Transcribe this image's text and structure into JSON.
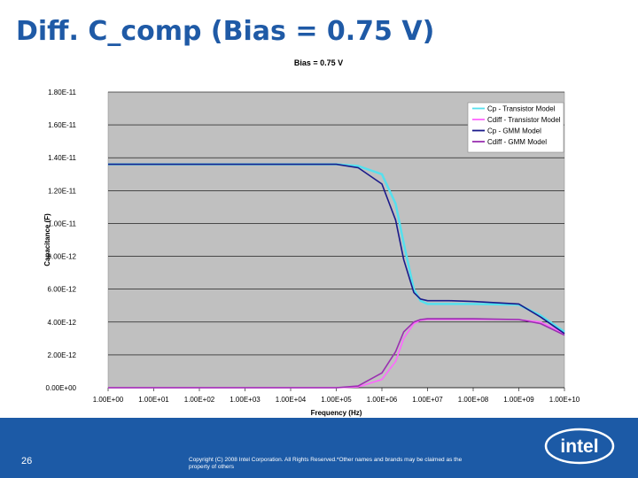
{
  "slide": {
    "title": "Diff. C_comp (Bias = 0.75 V)",
    "page_number": "26",
    "copyright": "Copyright (C) 2008 Intel Corporation. All Rights Reserved.*Other names and brands may be claimed as the property of others",
    "logo_text": "intel",
    "band_color": "#1c5aa6",
    "title_color": "#1f5aa6"
  },
  "chart_data": {
    "type": "line",
    "title": "Bias = 0.75 V",
    "xlabel": "Frequency (Hz)",
    "ylabel": "Capacitance (F)",
    "x_scale": "log",
    "xlim": [
      1,
      10000000000
    ],
    "ylim": [
      0,
      1.8e-11
    ],
    "x_tick_labels": [
      "1.00E+00",
      "1.00E+01",
      "1.00E+02",
      "1.00E+03",
      "1.00E+04",
      "1.00E+05",
      "1.00E+06",
      "1.00E+07",
      "1.00E+08",
      "1.00E+09",
      "1.00E+10"
    ],
    "y_tick_labels": [
      "0.00E+00",
      "2.00E-12",
      "4.00E-12",
      "6.00E-12",
      "8.00E-12",
      "1.00E-11",
      "1.20E-11",
      "1.40E-11",
      "1.60E-11",
      "1.80E-11"
    ],
    "grid": true,
    "legend_position": "top-right",
    "plot_background": "#c0c0c0",
    "series": [
      {
        "name": "Cp - Transistor Model",
        "color": "#55e0ee",
        "x": [
          1,
          10,
          100,
          1000,
          10000,
          100000,
          300000,
          1000000,
          2000000,
          3000000,
          5000000,
          7000000,
          10000000,
          30000000,
          100000000,
          1000000000,
          3000000000,
          10000000000
        ],
        "y": [
          1.36e-11,
          1.36e-11,
          1.36e-11,
          1.36e-11,
          1.36e-11,
          1.36e-11,
          1.35e-11,
          1.3e-11,
          1.12e-11,
          8.8e-12,
          6e-12,
          5.3e-12,
          5.1e-12,
          5.1e-12,
          5.1e-12,
          5.05e-12,
          4.4e-12,
          3.4e-12
        ]
      },
      {
        "name": "Cdiff - Transistor Model",
        "color": "#ff66ff",
        "x": [
          1,
          10,
          100,
          1000,
          10000,
          100000,
          300000,
          1000000,
          2000000,
          3000000,
          5000000,
          7000000,
          10000000,
          30000000,
          100000000,
          1000000000,
          3000000000,
          10000000000
        ],
        "y": [
          0,
          0,
          0,
          0,
          0,
          0,
          5e-14,
          5e-13,
          1.6e-12,
          3e-12,
          3.9e-12,
          4.1e-12,
          4.15e-12,
          4.15e-12,
          4.15e-12,
          4.15e-12,
          4e-12,
          3.3e-12
        ]
      },
      {
        "name": "Cp - GMM Model",
        "color": "#1a1a8a",
        "x": [
          1,
          10,
          100,
          1000,
          10000,
          100000,
          300000,
          1000000,
          2000000,
          3000000,
          5000000,
          7000000,
          10000000,
          30000000,
          100000000,
          1000000000,
          3000000000,
          10000000000
        ],
        "y": [
          1.36e-11,
          1.36e-11,
          1.36e-11,
          1.36e-11,
          1.36e-11,
          1.36e-11,
          1.34e-11,
          1.24e-11,
          1.02e-11,
          7.8e-12,
          5.8e-12,
          5.4e-12,
          5.3e-12,
          5.3e-12,
          5.25e-12,
          5.1e-12,
          4.3e-12,
          3.3e-12
        ]
      },
      {
        "name": "Cdiff - GMM Model",
        "color": "#9a30b0",
        "x": [
          1,
          10,
          100,
          1000,
          10000,
          100000,
          300000,
          1000000,
          2000000,
          3000000,
          5000000,
          7000000,
          10000000,
          30000000,
          100000000,
          1000000000,
          3000000000,
          10000000000
        ],
        "y": [
          0,
          0,
          0,
          0,
          0,
          0,
          1e-13,
          9e-13,
          2.2e-12,
          3.4e-12,
          4e-12,
          4.15e-12,
          4.2e-12,
          4.2e-12,
          4.2e-12,
          4.15e-12,
          3.9e-12,
          3.2e-12
        ]
      }
    ]
  }
}
